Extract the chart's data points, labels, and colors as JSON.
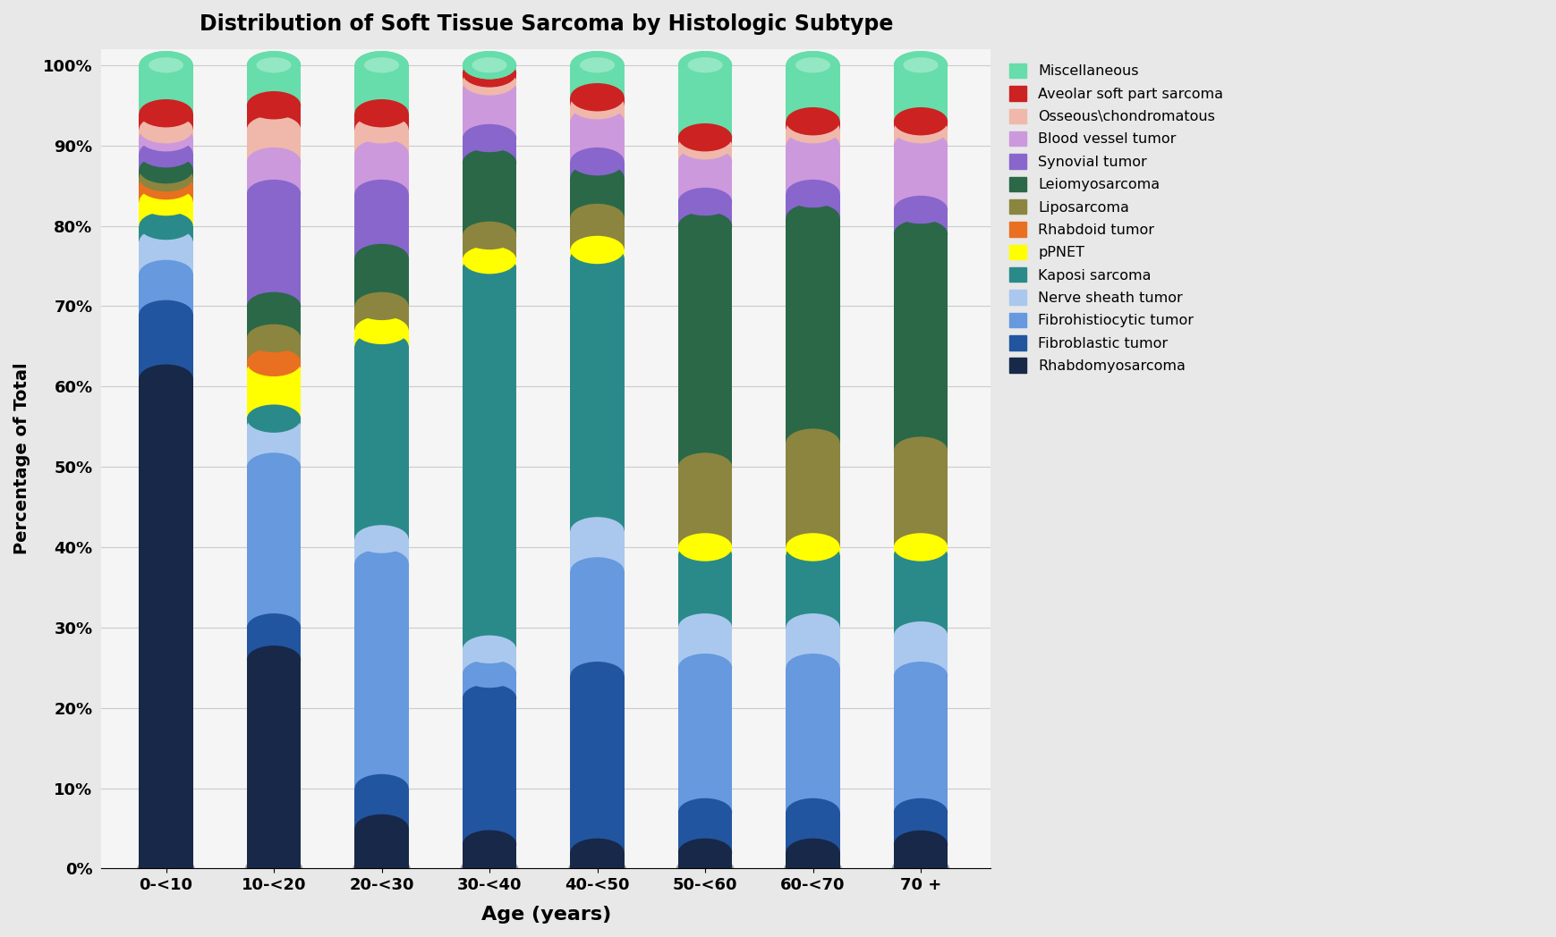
{
  "title": "Distribution of Soft Tissue Sarcoma by Histologic Subtype",
  "xlabel": "Age (years)",
  "ylabel": "Percentage of Total",
  "categories": [
    "0-<10",
    "10-<20",
    "20-<30",
    "30-<40",
    "40-<50",
    "50-<60",
    "60-<70",
    "70 +"
  ],
  "series": [
    {
      "label": "Rhabdomyosarcoma",
      "color": "#182848",
      "values": [
        61,
        26,
        5,
        3,
        2,
        2,
        2,
        3
      ]
    },
    {
      "label": "Fibroblastic tumor",
      "color": "#2255a0",
      "values": [
        8,
        4,
        5,
        18,
        22,
        5,
        5,
        4
      ]
    },
    {
      "label": "Fibrohistiocytic tumor",
      "color": "#6699dd",
      "values": [
        5,
        20,
        28,
        3,
        13,
        18,
        18,
        17
      ]
    },
    {
      "label": "Nerve sheath tumor",
      "color": "#aac8ee",
      "values": [
        4,
        5,
        3,
        3,
        5,
        5,
        5,
        5
      ]
    },
    {
      "label": "Kaposi sarcoma",
      "color": "#2a8a8a",
      "values": [
        2,
        1,
        24,
        47,
        34,
        9,
        9,
        10
      ]
    },
    {
      "label": "pPNET",
      "color": "#ffff00",
      "values": [
        3,
        6,
        2,
        1,
        1,
        1,
        1,
        1
      ]
    },
    {
      "label": "Rhabdoid tumor",
      "color": "#e87020",
      "values": [
        2,
        1,
        0,
        0,
        0,
        0,
        0,
        0
      ]
    },
    {
      "label": "Liposarcoma",
      "color": "#8b8540",
      "values": [
        1,
        3,
        3,
        3,
        4,
        10,
        13,
        12
      ]
    },
    {
      "label": "Leiomyosarcoma",
      "color": "#2a6848",
      "values": [
        1,
        4,
        6,
        9,
        5,
        30,
        28,
        27
      ]
    },
    {
      "label": "Synovial tumor",
      "color": "#8866cc",
      "values": [
        2,
        14,
        8,
        3,
        2,
        3,
        3,
        3
      ]
    },
    {
      "label": "Blood vessel tumor",
      "color": "#cc99dd",
      "values": [
        2,
        4,
        5,
        6,
        5,
        5,
        6,
        8
      ]
    },
    {
      "label": "Osseous\\chondromatous",
      "color": "#f0b8aa",
      "values": [
        1,
        4,
        3,
        1,
        2,
        2,
        2,
        2
      ]
    },
    {
      "label": "Aveolar soft part sarcoma",
      "color": "#cc2222",
      "values": [
        2,
        3,
        2,
        1,
        1,
        1,
        1,
        1
      ]
    },
    {
      "label": "Miscellaneous",
      "color": "#66ddaa",
      "values": [
        6,
        5,
        6,
        1,
        4,
        9,
        7,
        7
      ]
    }
  ],
  "background_color": "#e8e8e8",
  "plot_bg_color": "#f5f5f5",
  "ylim": [
    0,
    100
  ],
  "yticks": [
    0,
    10,
    20,
    30,
    40,
    50,
    60,
    70,
    80,
    90,
    100
  ],
  "ytick_labels": [
    "0%",
    "10%",
    "20%",
    "30%",
    "40%",
    "50%",
    "60%",
    "70%",
    "80%",
    "90%",
    "100%"
  ]
}
